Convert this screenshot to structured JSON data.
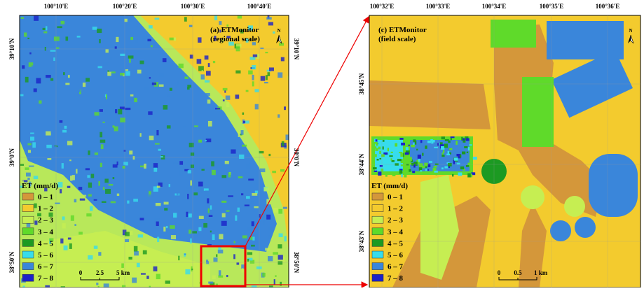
{
  "panels": [
    {
      "title": [
        "(a) ETMonitor",
        "(regional scale)"
      ],
      "x_labels": [
        "100°10'E",
        "100°20'E",
        "100°30'E",
        "100°40'E"
      ],
      "y_labels": [
        "39°10'N",
        "39°0'N",
        "38°50'N"
      ],
      "north": "N",
      "legend_title": "ET (mm/d)",
      "legend": [
        {
          "label": "0 – 1",
          "color": "#d4973a"
        },
        {
          "label": "1 – 2",
          "color": "#f3cb2e"
        },
        {
          "label": "2 – 3",
          "color": "#c6ee52"
        },
        {
          "label": "3 – 4",
          "color": "#5fda2a"
        },
        {
          "label": "4 – 5",
          "color": "#1c9a22"
        },
        {
          "label": "5 – 6",
          "color": "#37dcec"
        },
        {
          "label": "6 – 7",
          "color": "#3a86da"
        },
        {
          "label": "7 – 8",
          "color": "#1b22c8"
        }
      ],
      "scale": [
        "0",
        "2.5",
        "5 km"
      ]
    },
    {
      "title": [
        "(c) ETMonitor",
        "(field scale)"
      ],
      "x_labels": [
        "100°32'E",
        "100°33'E",
        "100°34'E",
        "100°35'E",
        "100°36'E"
      ],
      "y_labels": [
        "38°45'N",
        "38°44'N",
        "38°43'N"
      ],
      "north": "N",
      "legend_title": "ET (mm/d)",
      "legend": [
        {
          "label": "0 – 1",
          "color": "#d4973a"
        },
        {
          "label": "1 – 2",
          "color": "#f3cb2e"
        },
        {
          "label": "2 – 3",
          "color": "#c6ee52"
        },
        {
          "label": "3 – 4",
          "color": "#5fda2a"
        },
        {
          "label": "4 – 5",
          "color": "#1c9a22"
        },
        {
          "label": "5 – 6",
          "color": "#37dcec"
        },
        {
          "label": "6 – 7",
          "color": "#3a86da"
        },
        {
          "label": "7 – 8",
          "color": "#1b22c8"
        }
      ],
      "scale": [
        "0",
        "0.5",
        "1 km"
      ]
    }
  ]
}
